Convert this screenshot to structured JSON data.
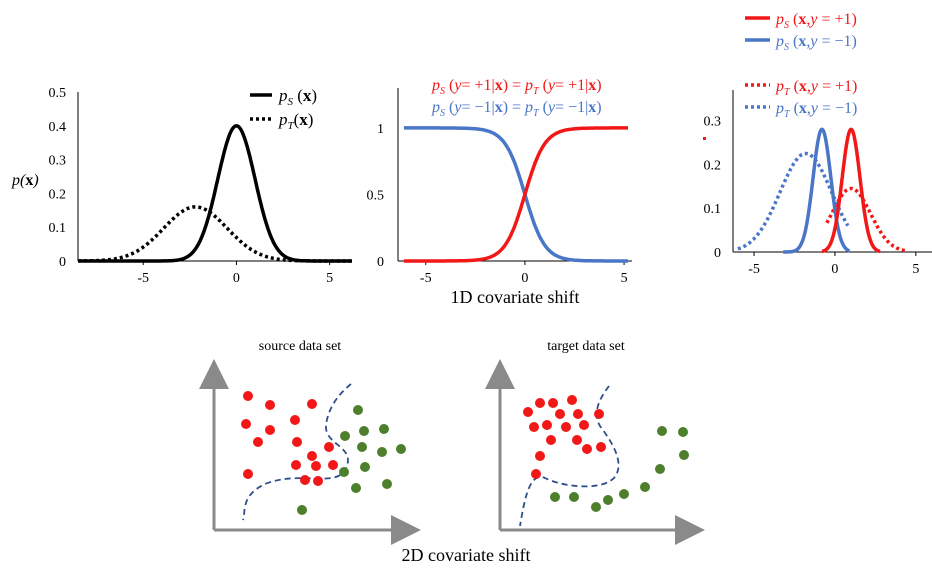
{
  "colors": {
    "red": "#f21818",
    "blue": "#4a76c8",
    "black": "#000000",
    "green": "#4e7f2c",
    "axis": "#8a8a8a",
    "boundary": "#2f4f8a"
  },
  "chart_data": [
    {
      "type": "line",
      "ylabel": "p(x)",
      "xlim": [
        -8.5,
        6.2
      ],
      "ylim": [
        0,
        0.5
      ],
      "x_ticks": [
        "-5",
        "0",
        "5"
      ],
      "y_ticks": [
        "0",
        "0.1",
        "0.2",
        "0.3",
        "0.4",
        "0.5"
      ],
      "legend": [
        "p_S(x)",
        "p_T(x)"
      ],
      "series": [
        {
          "name": "p_S(x)",
          "style": "solid",
          "color": "black",
          "mean": 0,
          "sd": 1,
          "amp": 0.4
        },
        {
          "name": "p_T(x)",
          "style": "dotted",
          "color": "black",
          "mean": -2.2,
          "sd": 1.7,
          "amp": 0.16
        }
      ]
    },
    {
      "type": "line",
      "xlabel": "1D covariate shift",
      "xlim": [
        -6.4,
        5.4
      ],
      "ylim": [
        0,
        1.3
      ],
      "x_ticks": [
        "-5",
        "0",
        "5"
      ],
      "y_ticks": [
        "0",
        "0.5",
        "1"
      ],
      "legend": [
        "p_S(y=+1|x) = p_T(y=+1|x)",
        "p_S(y=−1|x) = p_T(y=−1|x)"
      ],
      "series": [
        {
          "name": "p(y=+1|x)",
          "color": "red",
          "center": 0,
          "steepness": 2.0,
          "rising": true
        },
        {
          "name": "p(y=−1|x)",
          "color": "blue",
          "center": 0,
          "steepness": 2.0,
          "rising": false
        }
      ]
    },
    {
      "type": "line",
      "xlim": [
        -6.3,
        6.0
      ],
      "ylim": [
        0,
        0.37
      ],
      "x_ticks": [
        "-5",
        "0",
        "5"
      ],
      "y_ticks": [
        "0",
        "0.1",
        "0.2",
        "0.3"
      ],
      "legend": [
        "p_S(x,y = +1)",
        "p_S(x,y = −1)",
        "p_T(x,y = +1)",
        "p_T(x,y = −1)"
      ],
      "series": [
        {
          "name": "p_S(x,y=+1)",
          "color": "red",
          "style": "solid",
          "mean": 1.0,
          "sd": 0.55,
          "amp": 0.28
        },
        {
          "name": "p_S(x,y=-1)",
          "color": "blue",
          "style": "solid",
          "mean": -0.8,
          "sd": 0.55,
          "amp": 0.28
        },
        {
          "name": "p_T(x,y=+1)",
          "color": "red",
          "style": "dotted",
          "mean": 1.0,
          "sd": 1.2,
          "amp": 0.145
        },
        {
          "name": "p_T(x,y=-1)",
          "color": "blue",
          "style": "dotted",
          "mean": -1.8,
          "sd": 1.6,
          "amp": 0.225
        }
      ]
    }
  ],
  "source_panel": {
    "title": "source data set"
  },
  "target_panel": {
    "title": "target data set"
  },
  "bottom_caption": "2D covariate shift"
}
